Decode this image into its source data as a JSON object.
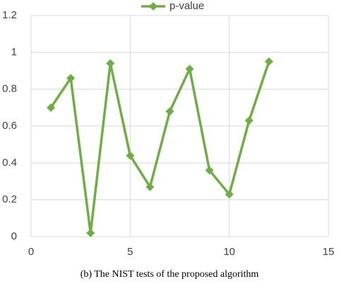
{
  "chart_data": {
    "type": "line",
    "caption": "(b) The NIST tests of the proposed algorithm",
    "x": [
      1,
      2,
      3,
      4,
      5,
      6,
      7,
      8,
      9,
      10,
      11,
      12
    ],
    "series": [
      {
        "name": "p-value",
        "color": "#70ad47",
        "values": [
          0.7,
          0.86,
          0.02,
          0.94,
          0.44,
          0.27,
          0.68,
          0.91,
          0.36,
          0.23,
          0.63,
          0.95
        ]
      }
    ],
    "xlim": [
      0,
      15
    ],
    "xticks": [
      0,
      5,
      10,
      15
    ],
    "ylim": [
      0,
      1.2
    ],
    "yticks": [
      0,
      0.2,
      0.4,
      0.6,
      0.8,
      1,
      1.2
    ],
    "grid": true,
    "legend": "top"
  }
}
